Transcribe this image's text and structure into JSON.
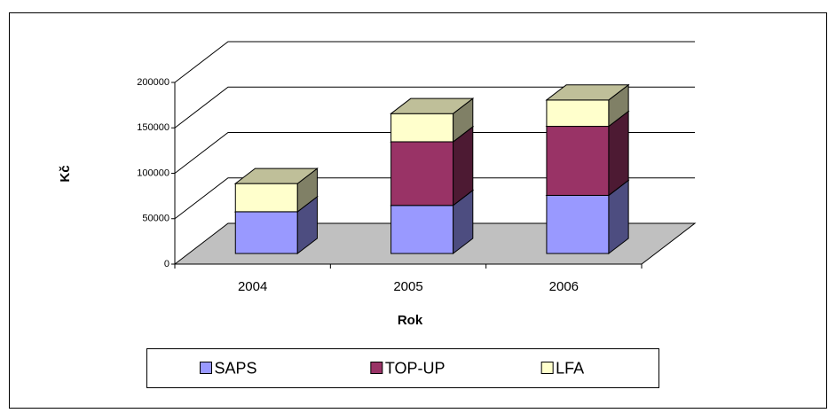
{
  "chart_data": {
    "type": "bar3d_stacked",
    "x_label": "Rok",
    "y_label": "Kč",
    "categories": [
      "2004",
      "2005",
      "2006"
    ],
    "series": [
      {
        "name": "SAPS",
        "color": "#9999FF",
        "values": [
          46000,
          53000,
          64000
        ]
      },
      {
        "name": "TOP-UP",
        "color": "#993366",
        "values": [
          0,
          70000,
          76000
        ]
      },
      {
        "name": "LFA",
        "color": "#FFFFCC",
        "values": [
          31000,
          31000,
          29000
        ]
      }
    ],
    "ylim": [
      0,
      200000
    ],
    "yticks": [
      0,
      50000,
      100000,
      150000,
      200000
    ],
    "grid": true,
    "legend": "bottom"
  }
}
